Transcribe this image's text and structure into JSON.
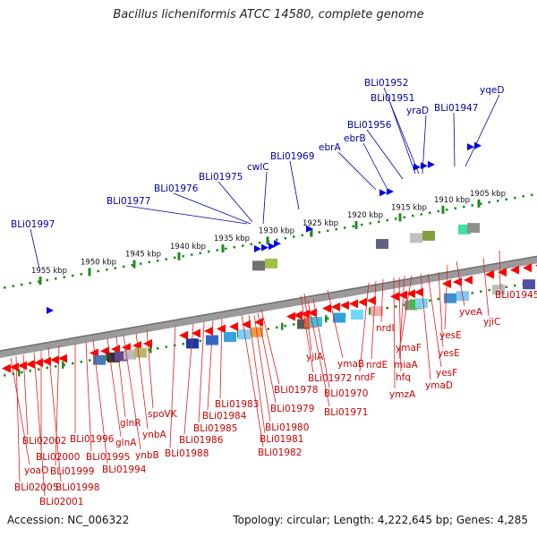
{
  "title": "Bacillus licheniformis ATCC 14580, complete genome",
  "footer": {
    "accession": "Accession: NC_006322",
    "topology": "Topology: circular; Length: 4,222,645 bp; Genes: 4,285"
  },
  "colors": {
    "forward_gene": "#0000ee",
    "reverse_gene": "#ff0000",
    "forward_label": "#0000aa",
    "reverse_label": "#cc0000",
    "scale_dots": "#1e8c1e",
    "backbone": "#808080"
  },
  "scale_ticks_upper": [
    "1905 kbp",
    "1910 kbp",
    "1915 kbp",
    "1920 kbp",
    "1925 kbp",
    "1930 kbp",
    "1935 kbp",
    "1940 kbp",
    "1945 kbp",
    "1950 kbp",
    "1955 kbp"
  ],
  "forward_gene_labels": [
    "yqeD",
    "BLi01952",
    "BLi01951",
    "yraD",
    "BLi01947",
    "BLi01956",
    "ebrB",
    "ebrA",
    "BLi01969",
    "cwlC",
    "BLi01975",
    "BLi01976",
    "BLi01977",
    "BLi01997"
  ],
  "reverse_gene_labels": [
    "BLi01945",
    "yjiC",
    "yveA",
    "yesE",
    "yesE",
    "yesF",
    "ymaD",
    "ymaF",
    "miaA",
    "hfq",
    "ymzA",
    "nrdI",
    "nrdE",
    "nrdF",
    "ymaB",
    "yjlA",
    "BLi01972",
    "BLi01970",
    "BLi01971",
    "BLi01978",
    "BLi01979",
    "BLi01980",
    "BLi01981",
    "BLi01982",
    "BLi01983",
    "BLi01984",
    "BLi01985",
    "BLi01986",
    "BLi01988",
    "spoVK",
    "ynbA",
    "ynbB",
    "glnR",
    "glnA",
    "BLi01994",
    "BLi01995",
    "BLi01996",
    "BLi01999",
    "BLi01998",
    "BLi02000",
    "BLi02001",
    "BLi02002",
    "BLi02005",
    "yoaO"
  ]
}
